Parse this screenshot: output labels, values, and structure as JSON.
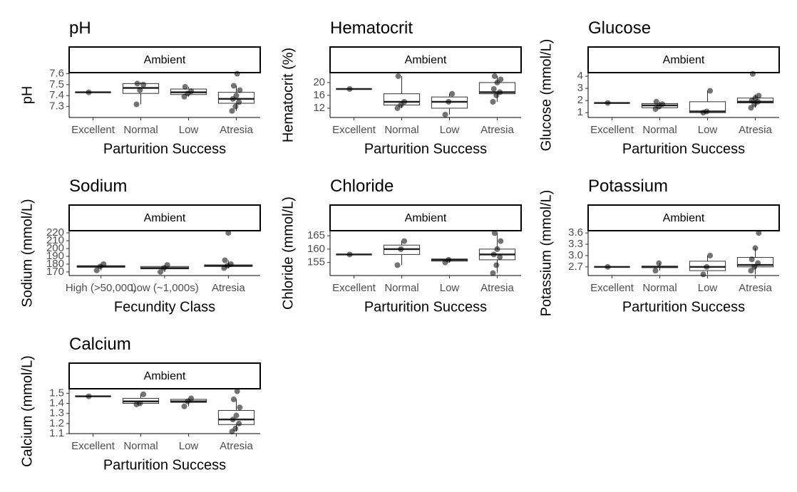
{
  "chart_data": [
    {
      "type": "box",
      "title": "pH",
      "strip": "Ambient",
      "xlabel": "Parturition Success",
      "ylabel": "pH",
      "categories": [
        "Excellent",
        "Normal",
        "Low",
        "Atresia"
      ],
      "boxes": [
        {
          "whislo": 7.43,
          "q1": 7.43,
          "med": 7.43,
          "q3": 7.43,
          "whishi": 7.43,
          "points": [
            7.43
          ]
        },
        {
          "whislo": 7.32,
          "q1": 7.42,
          "med": 7.47,
          "q3": 7.51,
          "whishi": 7.52,
          "points": [
            7.32,
            7.45,
            7.5,
            7.51
          ]
        },
        {
          "whislo": 7.39,
          "q1": 7.41,
          "med": 7.43,
          "q3": 7.46,
          "whishi": 7.48,
          "points": [
            7.39,
            7.42,
            7.44,
            7.48
          ]
        },
        {
          "whislo": 7.26,
          "q1": 7.33,
          "med": 7.37,
          "q3": 7.43,
          "whishi": 7.49,
          "points": [
            7.26,
            7.3,
            7.34,
            7.37,
            7.4,
            7.45,
            7.49,
            7.6
          ]
        }
      ],
      "ylim": [
        7.2,
        7.61
      ],
      "yticks": [
        7.3,
        7.4,
        7.5,
        7.6
      ]
    },
    {
      "type": "box",
      "title": "Hematocrit",
      "strip": "Ambient",
      "xlabel": "Parturition Success",
      "ylabel": "Hematocrit (%)",
      "categories": [
        "Excellent",
        "Normal",
        "Low",
        "Atresia"
      ],
      "boxes": [
        {
          "whislo": 18,
          "q1": 18,
          "med": 18,
          "q3": 18,
          "whishi": 18,
          "points": [
            18
          ]
        },
        {
          "whislo": 12,
          "q1": 13,
          "med": 14,
          "q3": 16.5,
          "whishi": 22,
          "points": [
            12,
            13,
            14,
            22
          ]
        },
        {
          "whislo": 10,
          "q1": 12,
          "med": 14,
          "q3": 15.5,
          "whishi": 16.5,
          "points": [
            10,
            14,
            16.5
          ]
        },
        {
          "whislo": 14,
          "q1": 16.5,
          "med": 17,
          "q3": 20,
          "whishi": 22,
          "points": [
            14,
            16,
            17,
            18,
            20,
            21,
            22
          ]
        }
      ],
      "ylim": [
        9.1,
        23.1
      ],
      "yticks": [
        12,
        16,
        20
      ]
    },
    {
      "type": "box",
      "title": "Glucose",
      "strip": "Ambient",
      "xlabel": "Parturition Success",
      "ylabel": "Glucose (mmol/L)",
      "categories": [
        "Excellent",
        "Normal",
        "Low",
        "Atresia"
      ],
      "boxes": [
        {
          "whislo": 1.8,
          "q1": 1.8,
          "med": 1.8,
          "q3": 1.8,
          "whishi": 1.8,
          "points": [
            1.8
          ]
        },
        {
          "whislo": 1.3,
          "q1": 1.4,
          "med": 1.6,
          "q3": 1.75,
          "whishi": 1.9,
          "points": [
            1.3,
            1.5,
            1.7,
            1.9
          ]
        },
        {
          "whislo": 1.0,
          "q1": 1.0,
          "med": 1.1,
          "q3": 1.9,
          "whishi": 2.8,
          "points": [
            1.0,
            1.1,
            2.8
          ]
        },
        {
          "whislo": 1.4,
          "q1": 1.8,
          "med": 1.9,
          "q3": 2.2,
          "whishi": 2.5,
          "points": [
            1.4,
            1.7,
            1.9,
            2.0,
            2.2,
            2.4,
            4.2
          ]
        }
      ],
      "ylim": [
        0.6,
        4.3
      ],
      "yticks": [
        1,
        2,
        3,
        4
      ]
    },
    {
      "type": "box",
      "title": "Sodium",
      "strip": "Ambient",
      "xlabel": "Fecundity Class",
      "ylabel": "Sodium (mmol/L)",
      "categories": [
        "High (>50,000)",
        "Low (~1,000s)",
        "Atresia"
      ],
      "boxes": [
        {
          "whislo": 172,
          "q1": 176,
          "med": 177,
          "q3": 178,
          "whishi": 180,
          "points": [
            172,
            177,
            180
          ]
        },
        {
          "whislo": 170,
          "q1": 174,
          "med": 175,
          "q3": 177,
          "whishi": 179,
          "points": [
            170,
            175,
            179
          ]
        },
        {
          "whislo": 175,
          "q1": 177,
          "med": 178,
          "q3": 179,
          "whishi": 185,
          "points": [
            175,
            178,
            180,
            185,
            220
          ]
        }
      ],
      "ylim": [
        165.4,
        222.8
      ],
      "yticks": [
        170,
        180,
        190,
        200,
        210,
        220
      ]
    },
    {
      "type": "box",
      "title": "Chloride",
      "strip": "Ambient",
      "xlabel": "Parturition Success",
      "ylabel": "Chloride (mmol/L)",
      "categories": [
        "Excellent",
        "Normal",
        "Low",
        "Atresia"
      ],
      "boxes": [
        {
          "whislo": 158,
          "q1": 158,
          "med": 158,
          "q3": 158,
          "whishi": 158,
          "points": [
            158
          ]
        },
        {
          "whislo": 154,
          "q1": 158,
          "med": 160,
          "q3": 161.5,
          "whishi": 163,
          "points": [
            154,
            160,
            163
          ]
        },
        {
          "whislo": 155,
          "q1": 155.5,
          "med": 156,
          "q3": 156.3,
          "whishi": 156.5,
          "points": [
            155,
            156
          ]
        },
        {
          "whislo": 151,
          "q1": 156,
          "med": 158,
          "q3": 160,
          "whishi": 166,
          "points": [
            151,
            154,
            157,
            158,
            160,
            163,
            166
          ]
        }
      ],
      "ylim": [
        150.1,
        166.9
      ],
      "yticks": [
        155,
        160,
        165
      ]
    },
    {
      "type": "box",
      "title": "Potassium",
      "strip": "Ambient",
      "xlabel": "Parturition Success",
      "ylabel": "Potassium (mmol/L)",
      "categories": [
        "Excellent",
        "Normal",
        "Low",
        "Atresia"
      ],
      "boxes": [
        {
          "whislo": 2.7,
          "q1": 2.7,
          "med": 2.7,
          "q3": 2.7,
          "whishi": 2.7,
          "points": [
            2.7
          ]
        },
        {
          "whislo": 2.6,
          "q1": 2.68,
          "med": 2.7,
          "q3": 2.72,
          "whishi": 2.8,
          "points": [
            2.6,
            2.8
          ]
        },
        {
          "whislo": 2.5,
          "q1": 2.6,
          "med": 2.7,
          "q3": 2.85,
          "whishi": 3.0,
          "points": [
            2.5,
            2.7,
            3.0
          ]
        },
        {
          "whislo": 2.5,
          "q1": 2.7,
          "med": 2.75,
          "q3": 2.95,
          "whishi": 3.2,
          "points": [
            2.6,
            2.7,
            2.8,
            2.9,
            3.2,
            3.6
          ]
        }
      ],
      "ylim": [
        2.47,
        3.66
      ],
      "yticks": [
        {
          "value": 2.7,
          "label": "2.7"
        },
        {
          "value": 3,
          "label": "3.0"
        },
        {
          "value": 3.3,
          "label": "3.3"
        },
        {
          "value": 3.6,
          "label": "3.6"
        }
      ]
    },
    {
      "type": "box",
      "title": "Calcium",
      "strip": "Ambient",
      "xlabel": "Parturition Success",
      "ylabel": "Calcium (mmol/L)",
      "categories": [
        "Excellent",
        "Normal",
        "Low",
        "Atresia"
      ],
      "boxes": [
        {
          "whislo": 1.47,
          "q1": 1.47,
          "med": 1.47,
          "q3": 1.47,
          "whishi": 1.47,
          "points": [
            1.47
          ]
        },
        {
          "whislo": 1.39,
          "q1": 1.4,
          "med": 1.42,
          "q3": 1.45,
          "whishi": 1.49,
          "points": [
            1.39,
            1.4,
            1.49
          ]
        },
        {
          "whislo": 1.37,
          "q1": 1.41,
          "med": 1.42,
          "q3": 1.44,
          "whishi": 1.45,
          "points": [
            1.37,
            1.42,
            1.45
          ]
        },
        {
          "whislo": 1.12,
          "q1": 1.19,
          "med": 1.24,
          "q3": 1.33,
          "whishi": 1.44,
          "points": [
            1.12,
            1.15,
            1.2,
            1.24,
            1.28,
            1.36,
            1.44,
            1.52
          ]
        }
      ],
      "ylim": [
        1.1,
        1.545
      ],
      "yticks": [
        1.1,
        1.2,
        1.3,
        1.4,
        1.5
      ]
    }
  ]
}
